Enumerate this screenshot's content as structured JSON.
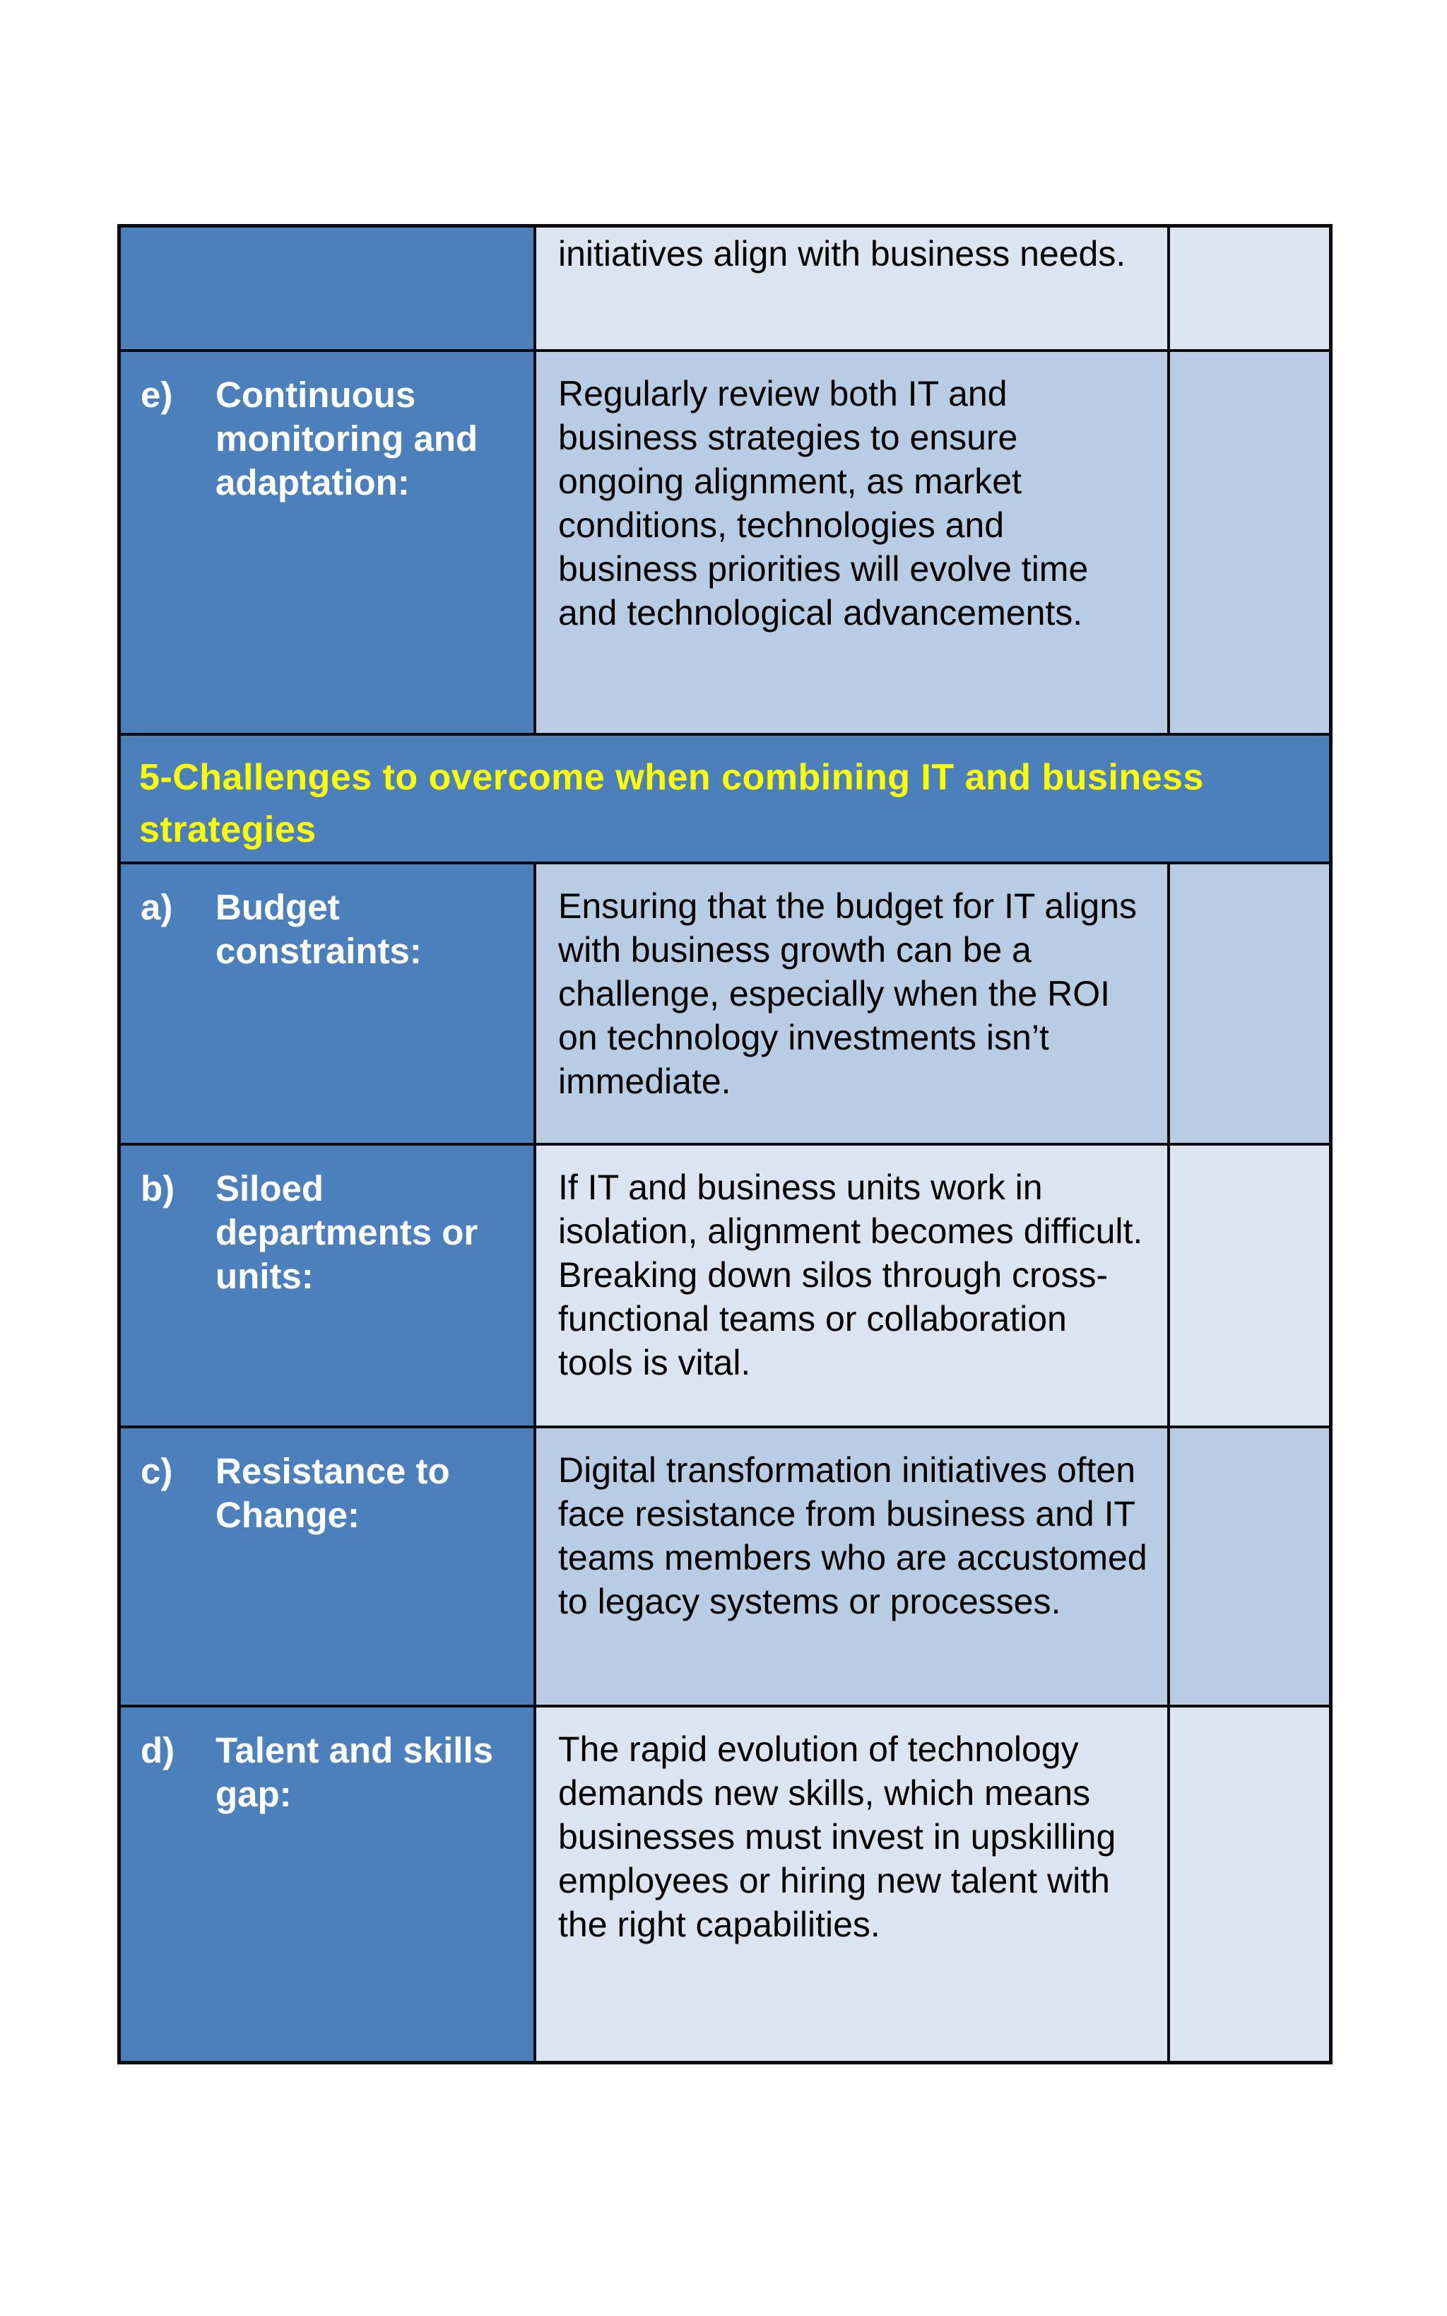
{
  "colors": {
    "accent_blue": "#4c80bd",
    "row_shade_light": "#b8cce4",
    "row_shade_lighter": "#dbe5f1",
    "header_text_yellow": "#ffff00",
    "label_text_white": "#ffffff",
    "body_text_black": "#000000",
    "border_black": "#0b0b0d",
    "page_background": "#ffffff"
  },
  "table": {
    "continuation": {
      "description": "initiatives align with business needs."
    },
    "section_header": "5-Challenges to overcome when combining IT and business strategies",
    "rows": [
      {
        "marker": "e)",
        "label": "Continuous monitoring and adaptation:",
        "description": "Regularly review both IT and business strategies to ensure ongoing alignment, as market conditions, technologies and business priorities will evolve time and technological advancements.",
        "shade": "light"
      },
      {
        "marker": "a)",
        "label": "Budget constraints:",
        "description": "Ensuring that the budget for IT aligns with business growth can be a challenge, especially when the ROI on technology investments isn’t immediate.",
        "shade": "light"
      },
      {
        "marker": "b)",
        "label": "Siloed departments or units:",
        "description": "If IT and business units work in isolation, alignment becomes difficult. Breaking down silos through cross-functional teams or collaboration tools is vital.",
        "shade": "lighter"
      },
      {
        "marker": "c)",
        "label": "Resistance to Change:",
        "description": "Digital transformation initiatives often face resistance from business and IT teams members who are accustomed to legacy systems or processes.",
        "shade": "light"
      },
      {
        "marker": "d)",
        "label": "Talent and skills gap:",
        "description": "The rapid evolution of technology demands new skills, which means businesses must invest in upskilling employees or hiring new talent with the right capabilities.",
        "shade": "lighter"
      }
    ]
  }
}
